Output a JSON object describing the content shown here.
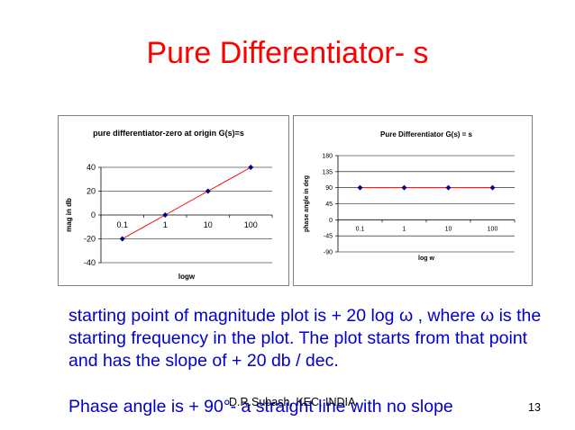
{
  "slide": {
    "title": "Pure Differentiator- s",
    "paragraph1": "starting point of magnitude plot is + 20 log ω , where ω is the starting frequency in the plot. The plot starts from that point and has the slope of  + 20 db / dec.",
    "paragraph2": "Phase angle is + 90°- a straight line with no slope",
    "footer": "D.R.Subash, KEC, INDIA",
    "slide_number": "13"
  },
  "colors": {
    "title": "#ff0000",
    "body_text": "#0000cc",
    "line": "#ff0000",
    "marker": "#00008b",
    "grid": "#000000"
  },
  "chart_data": [
    {
      "type": "line",
      "title": "pure differentiator-zero at origin G(s)=s",
      "xlabel": "logw",
      "ylabel": "mag in db",
      "categories": [
        "0.1",
        "1",
        "10",
        "100"
      ],
      "series": [
        {
          "values": [
            -20,
            0,
            20,
            40
          ]
        }
      ],
      "ylim": [
        -40,
        40
      ],
      "yticks": [
        -40,
        -20,
        0,
        20,
        40
      ],
      "grid": true,
      "legend": "none"
    },
    {
      "type": "line",
      "title": "Pure Differentiator G(s) = s",
      "xlabel": "log w",
      "ylabel": "phase angle in deg",
      "categories": [
        "0.1",
        "1",
        "10",
        "100"
      ],
      "series": [
        {
          "values": [
            90,
            90,
            90,
            90
          ]
        }
      ],
      "ylim": [
        -90,
        180
      ],
      "yticks": [
        -90,
        -45,
        0,
        45,
        90,
        135,
        180
      ],
      "grid": true,
      "legend": "none"
    }
  ]
}
